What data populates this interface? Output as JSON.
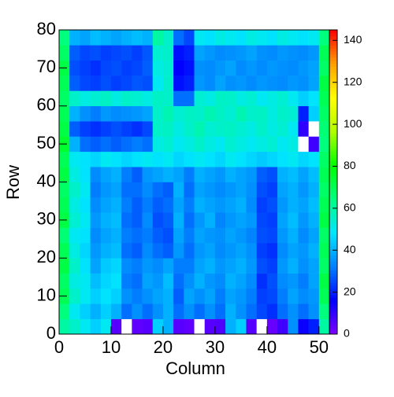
{
  "chart_data": {
    "type": "heatmap",
    "xlabel": "Column",
    "ylabel": "Row",
    "xbins": [
      0,
      2,
      4,
      6,
      8,
      10,
      12,
      14,
      16,
      18,
      20,
      22,
      24,
      26,
      28,
      30,
      32,
      34,
      36,
      38,
      40,
      42,
      44,
      46,
      48,
      50,
      52
    ],
    "ybins": [
      0,
      4,
      8,
      12,
      16,
      20,
      24,
      28,
      32,
      36,
      40,
      44,
      48,
      52,
      56,
      60,
      64,
      68,
      72,
      76,
      80
    ],
    "z": [
      [
        60,
        55,
        50,
        45,
        50,
        5,
        0,
        4,
        5,
        45,
        40,
        5,
        4,
        0,
        5,
        6,
        40,
        45,
        5,
        0,
        3,
        8,
        35,
        15,
        20,
        60
      ],
      [
        65,
        50,
        45,
        40,
        45,
        40,
        30,
        35,
        30,
        35,
        40,
        30,
        35,
        30,
        35,
        30,
        40,
        35,
        30,
        25,
        22,
        30,
        35,
        30,
        35,
        65
      ],
      [
        70,
        55,
        50,
        45,
        48,
        45,
        35,
        32,
        35,
        38,
        40,
        28,
        38,
        35,
        38,
        32,
        38,
        36,
        32,
        24,
        25,
        32,
        38,
        34,
        36,
        70
      ],
      [
        68,
        52,
        50,
        42,
        46,
        48,
        32,
        30,
        38,
        36,
        42,
        30,
        35,
        40,
        36,
        34,
        40,
        38,
        34,
        22,
        26,
        34,
        36,
        32,
        38,
        72
      ],
      [
        72,
        55,
        48,
        38,
        44,
        46,
        34,
        32,
        36,
        34,
        38,
        32,
        32,
        38,
        40,
        36,
        38,
        40,
        36,
        26,
        24,
        36,
        40,
        35,
        38,
        68
      ],
      [
        70,
        52,
        46,
        36,
        40,
        42,
        30,
        28,
        34,
        30,
        28,
        36,
        30,
        36,
        38,
        34,
        36,
        38,
        35,
        24,
        22,
        34,
        38,
        36,
        40,
        70
      ],
      [
        66,
        50,
        48,
        34,
        38,
        40,
        32,
        30,
        32,
        28,
        26,
        38,
        32,
        38,
        36,
        35,
        38,
        36,
        33,
        26,
        25,
        36,
        40,
        34,
        38,
        68
      ],
      [
        72,
        54,
        50,
        36,
        40,
        42,
        30,
        28,
        34,
        26,
        28,
        40,
        30,
        36,
        40,
        33,
        36,
        38,
        36,
        25,
        24,
        38,
        42,
        36,
        40,
        72
      ],
      [
        70,
        52,
        48,
        34,
        38,
        40,
        32,
        28,
        32,
        28,
        30,
        38,
        32,
        40,
        38,
        36,
        38,
        40,
        34,
        24,
        26,
        36,
        40,
        38,
        42,
        70
      ],
      [
        68,
        55,
        50,
        32,
        36,
        38,
        30,
        30,
        34,
        30,
        28,
        40,
        30,
        38,
        36,
        34,
        36,
        38,
        35,
        26,
        24,
        38,
        40,
        36,
        40,
        68
      ],
      [
        72,
        52,
        48,
        34,
        38,
        40,
        32,
        28,
        36,
        38,
        40,
        38,
        32,
        40,
        38,
        36,
        40,
        38,
        36,
        28,
        26,
        40,
        42,
        38,
        42,
        70
      ],
      [
        70,
        50,
        48,
        46,
        50,
        48,
        46,
        48,
        50,
        48,
        50,
        46,
        48,
        50,
        48,
        46,
        50,
        48,
        46,
        44,
        46,
        48,
        50,
        46,
        48,
        68
      ],
      [
        75,
        40,
        30,
        28,
        30,
        28,
        30,
        32,
        30,
        52,
        54,
        50,
        52,
        55,
        52,
        50,
        54,
        52,
        50,
        52,
        54,
        50,
        52,
        0,
        8,
        65
      ],
      [
        72,
        28,
        24,
        22,
        24,
        26,
        24,
        22,
        25,
        55,
        56,
        52,
        55,
        58,
        54,
        55,
        56,
        54,
        52,
        55,
        52,
        54,
        50,
        10,
        0,
        66
      ],
      [
        70,
        40,
        35,
        32,
        36,
        34,
        35,
        36,
        38,
        55,
        58,
        54,
        56,
        55,
        58,
        56,
        54,
        58,
        55,
        56,
        52,
        55,
        54,
        20,
        45,
        68
      ],
      [
        68,
        55,
        52,
        54,
        56,
        52,
        55,
        54,
        52,
        56,
        55,
        30,
        30,
        54,
        52,
        56,
        55,
        52,
        54,
        50,
        52,
        54,
        50,
        45,
        48,
        70
      ],
      [
        70,
        28,
        25,
        24,
        26,
        24,
        25,
        27,
        26,
        50,
        55,
        18,
        20,
        36,
        34,
        38,
        35,
        36,
        34,
        36,
        35,
        34,
        36,
        35,
        38,
        72
      ],
      [
        72,
        26,
        24,
        22,
        25,
        26,
        24,
        25,
        28,
        52,
        54,
        16,
        18,
        35,
        34,
        36,
        38,
        34,
        36,
        34,
        36,
        35,
        34,
        36,
        38,
        68
      ],
      [
        68,
        28,
        25,
        26,
        24,
        25,
        26,
        24,
        27,
        54,
        55,
        18,
        20,
        38,
        36,
        34,
        35,
        36,
        38,
        35,
        34,
        36,
        35,
        34,
        36,
        70
      ],
      [
        65,
        40,
        38,
        42,
        40,
        38,
        40,
        42,
        40,
        60,
        55,
        30,
        25,
        50,
        48,
        52,
        50,
        48,
        52,
        50,
        48,
        52,
        50,
        48,
        50,
        65
      ]
    ],
    "xlim": [
      0,
      52
    ],
    "ylim": [
      0,
      80
    ],
    "xticks": [
      0,
      10,
      20,
      30,
      40,
      50
    ],
    "yticks": [
      0,
      10,
      20,
      30,
      40,
      50,
      60,
      70,
      80
    ],
    "zlim": [
      0,
      145
    ],
    "zticks": [
      0,
      20,
      40,
      60,
      80,
      100,
      120,
      140
    ],
    "colorscale": [
      "#7f00ff",
      "#0000ff",
      "#0080ff",
      "#00e5ff",
      "#00ff80",
      "#00ff00",
      "#b0ff00",
      "#ffff00",
      "#ffa000",
      "#ff0000"
    ]
  }
}
